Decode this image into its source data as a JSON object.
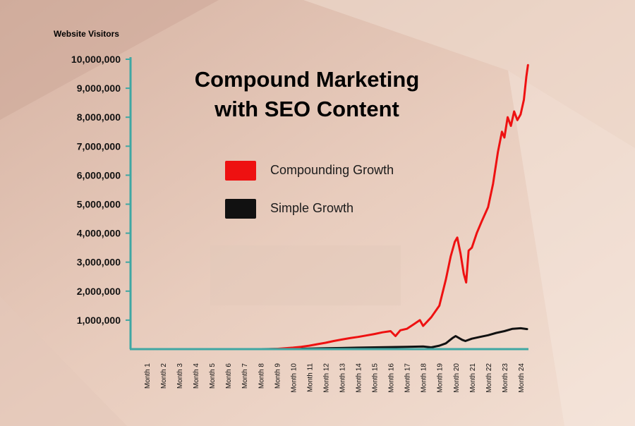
{
  "chart_data": {
    "type": "line",
    "title_lines": [
      "Compound Marketing",
      "with SEO Content"
    ],
    "ylabel": "Website Visitors",
    "xlabel": "",
    "ylim": [
      0,
      10000000
    ],
    "yticks": [
      1000000,
      2000000,
      3000000,
      4000000,
      5000000,
      6000000,
      7000000,
      8000000,
      9000000,
      10000000
    ],
    "ytick_labels": [
      "1,000,000",
      "2,000,000",
      "3,000,000",
      "4,000,000",
      "5,000,000",
      "6,000,000",
      "7,000,000",
      "8,000,000",
      "9,000,000",
      "10,000,000"
    ],
    "grid": false,
    "legend_position": "upper-center",
    "categories": [
      "Month 1",
      "Month 2",
      "Month 3",
      "Month 4",
      "Month 5",
      "Month 6",
      "Month 7",
      "Month 8",
      "Month 9",
      "Month 10",
      "Month 11",
      "Month 12",
      "Month 13",
      "Month 14",
      "Month 15",
      "Month 16",
      "Month 17",
      "Month 18",
      "Month 19",
      "Month 20",
      "Month 21",
      "Month 22",
      "Month 23",
      "Month 24"
    ],
    "series": [
      {
        "name": "Compounding Growth",
        "color": "#ee1111",
        "x": [
          8.5,
          9,
          9.5,
          10,
          10.5,
          11,
          11.5,
          12,
          12.5,
          13,
          13.5,
          14,
          14.5,
          15,
          15.5,
          16,
          16.3,
          16.6,
          17,
          17.4,
          17.8,
          18,
          18.5,
          19,
          19.4,
          19.7,
          19.95,
          20.1,
          20.3,
          20.5,
          20.65,
          20.8,
          21,
          21.3,
          21.6,
          22,
          22.3,
          22.6,
          22.85,
          23,
          23.2,
          23.4,
          23.6,
          23.8,
          24,
          24.2,
          24.35,
          24.45
        ],
        "values": [
          0,
          10000,
          30000,
          50000,
          80000,
          120000,
          170000,
          220000,
          280000,
          330000,
          380000,
          420000,
          470000,
          520000,
          580000,
          620000,
          450000,
          650000,
          700000,
          850000,
          1000000,
          800000,
          1100000,
          1500000,
          2400000,
          3200000,
          3700000,
          3850000,
          3300000,
          2600000,
          2300000,
          3400000,
          3500000,
          4000000,
          4400000,
          4900000,
          5700000,
          6800000,
          7500000,
          7300000,
          8000000,
          7700000,
          8200000,
          7900000,
          8100000,
          8600000,
          9400000,
          9800000
        ]
      },
      {
        "name": "Simple Growth",
        "color": "#111111",
        "x": [
          8,
          9,
          10,
          11,
          12,
          13,
          14,
          15,
          16,
          17,
          18,
          18.5,
          19,
          19.4,
          19.8,
          20,
          20.4,
          20.6,
          21,
          21.5,
          22,
          22.5,
          23,
          23.5,
          24,
          24.4
        ],
        "values": [
          0,
          5000,
          10000,
          20000,
          30000,
          40000,
          50000,
          60000,
          70000,
          80000,
          90000,
          60000,
          120000,
          200000,
          380000,
          450000,
          320000,
          280000,
          360000,
          420000,
          480000,
          560000,
          620000,
          700000,
          720000,
          690000
        ]
      }
    ]
  }
}
